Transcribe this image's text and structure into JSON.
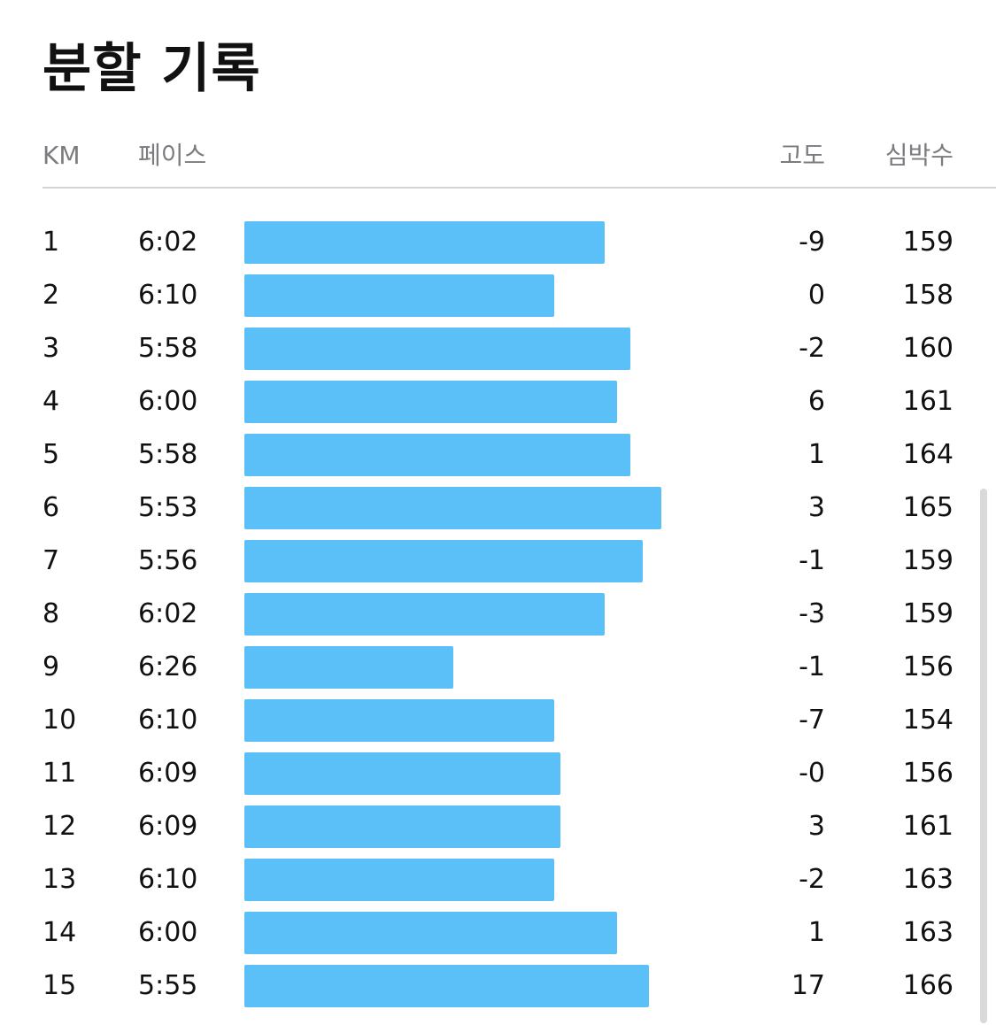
{
  "title": "분할 기록",
  "columns": {
    "km": "KM",
    "pace": "페이스",
    "elevation": "고도",
    "heart_rate": "심박수"
  },
  "colors": {
    "bar": "#5bbff8",
    "header_text": "#7b7b80",
    "divider": "#d4d4d8"
  },
  "chart_data": {
    "type": "bar",
    "categories": [
      "1",
      "2",
      "3",
      "4",
      "5",
      "6",
      "7",
      "8",
      "9",
      "10",
      "11",
      "12",
      "13",
      "14",
      "15"
    ],
    "pace_seconds_per_km": [
      362,
      370,
      358,
      360,
      358,
      353,
      356,
      362,
      386,
      370,
      369,
      369,
      370,
      360,
      355
    ]
  },
  "splits": [
    {
      "km": "1",
      "pace": "6:02",
      "elevation": "-9",
      "heart_rate": "159"
    },
    {
      "km": "2",
      "pace": "6:10",
      "elevation": "0",
      "heart_rate": "158"
    },
    {
      "km": "3",
      "pace": "5:58",
      "elevation": "-2",
      "heart_rate": "160"
    },
    {
      "km": "4",
      "pace": "6:00",
      "elevation": "6",
      "heart_rate": "161"
    },
    {
      "km": "5",
      "pace": "5:58",
      "elevation": "1",
      "heart_rate": "164"
    },
    {
      "km": "6",
      "pace": "5:53",
      "elevation": "3",
      "heart_rate": "165"
    },
    {
      "km": "7",
      "pace": "5:56",
      "elevation": "-1",
      "heart_rate": "159"
    },
    {
      "km": "8",
      "pace": "6:02",
      "elevation": "-3",
      "heart_rate": "159"
    },
    {
      "km": "9",
      "pace": "6:26",
      "elevation": "-1",
      "heart_rate": "156"
    },
    {
      "km": "10",
      "pace": "6:10",
      "elevation": "-7",
      "heart_rate": "154"
    },
    {
      "km": "11",
      "pace": "6:09",
      "elevation": "-0",
      "heart_rate": "156"
    },
    {
      "km": "12",
      "pace": "6:09",
      "elevation": "3",
      "heart_rate": "161"
    },
    {
      "km": "13",
      "pace": "6:10",
      "elevation": "-2",
      "heart_rate": "163"
    },
    {
      "km": "14",
      "pace": "6:00",
      "elevation": "1",
      "heart_rate": "163"
    },
    {
      "km": "15",
      "pace": "5:55",
      "elevation": "17",
      "heart_rate": "166"
    }
  ]
}
